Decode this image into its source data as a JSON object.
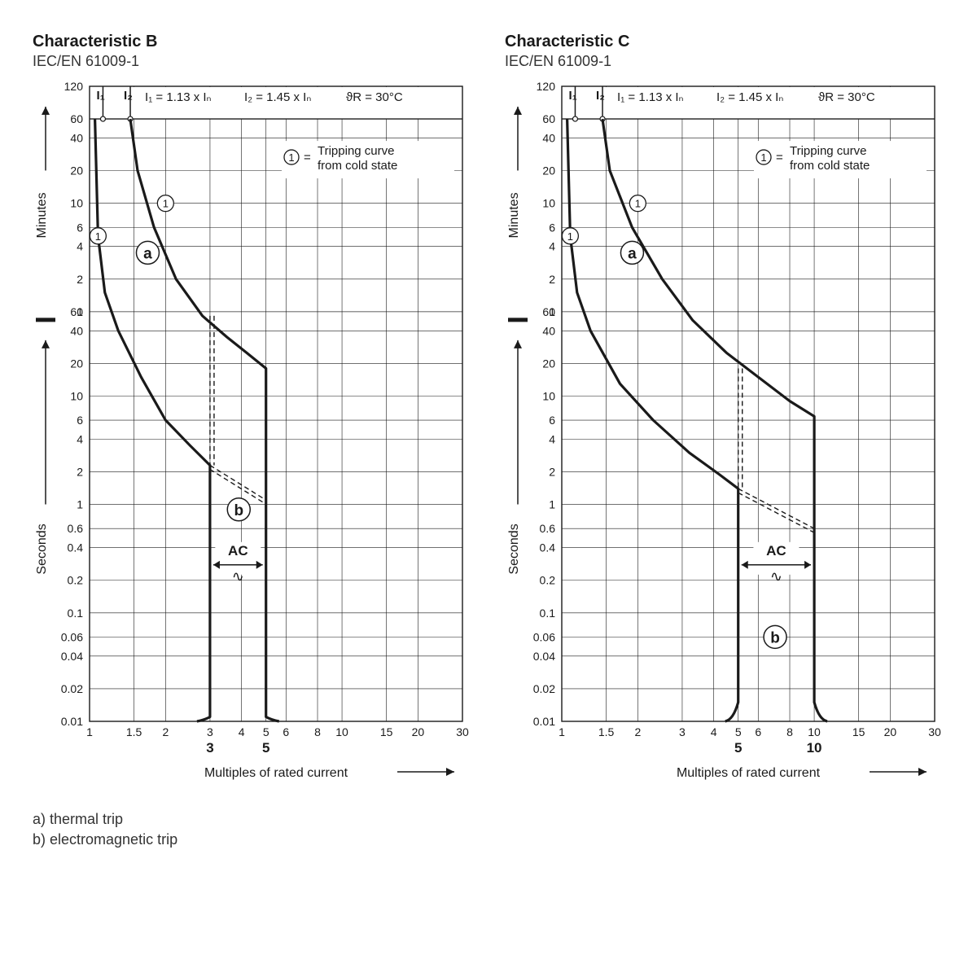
{
  "footer": {
    "a": "a)  thermal trip",
    "b": "b)  electromagnetic trip"
  },
  "common": {
    "x_axis_label": "Multiples of rated current",
    "y_axis_minutes": "Minutes",
    "y_axis_seconds": "Seconds",
    "header_I1": "I₁ = 1.13 x Iₙ",
    "header_I2": "I₂ = 1.45 x Iₙ",
    "header_temp": "ϑR = 30°C",
    "legend_circle_text": "Tripping curve from cold state",
    "legend_circle_num": "1",
    "label_a": "a",
    "label_b": "b",
    "label_AC": "AC",
    "colors": {
      "line": "#1a1a1a",
      "grid": "#1a1a1a",
      "bg": "#ffffff",
      "text": "#1a1a1a"
    },
    "line_widths": {
      "curve": 3.2,
      "grid": 0.6,
      "frame": 1.4
    },
    "font_sizes": {
      "title": 20,
      "subtitle": 18,
      "tick": 14,
      "annot": 15,
      "axis_label": 16
    },
    "x_ticks": [
      1,
      1.5,
      2,
      3,
      4,
      5,
      6,
      8,
      10,
      15,
      20,
      30
    ],
    "x_range": [
      1,
      30
    ],
    "y_sec_ticks": [
      0.01,
      0.02,
      0.04,
      0.06,
      0.1,
      0.2,
      0.4,
      0.6,
      1,
      2,
      4,
      6,
      10,
      20,
      40,
      60
    ],
    "y_min_ticks": [
      1,
      2,
      4,
      6,
      10,
      20,
      40,
      60,
      120
    ],
    "y_sec_range": [
      0.01,
      60
    ],
    "y_min_range": [
      1,
      120
    ]
  },
  "charts": [
    {
      "title": "Characteristic B",
      "subtitle": "IEC/EN 61009-1",
      "mag_low": 3,
      "mag_high": 5,
      "x_bold_labels": [
        "3",
        "5"
      ],
      "curve_lower": [
        {
          "x": 1.05,
          "sec": null,
          "min": 60
        },
        {
          "x": 1.08,
          "sec": null,
          "min": 5
        },
        {
          "x": 1.15,
          "sec": null,
          "min": 1.5
        },
        {
          "x": 1.3,
          "sec": 40,
          "min": null
        },
        {
          "x": 1.6,
          "sec": 15,
          "min": null
        },
        {
          "x": 2.0,
          "sec": 6,
          "min": null
        },
        {
          "x": 2.5,
          "sec": 3.5,
          "min": null
        },
        {
          "x": 3.0,
          "sec": 2.3,
          "min": null
        }
      ],
      "curve_upper": [
        {
          "x": 1.45,
          "sec": null,
          "min": 60
        },
        {
          "x": 1.55,
          "sec": null,
          "min": 20
        },
        {
          "x": 1.8,
          "sec": null,
          "min": 6
        },
        {
          "x": 2.2,
          "sec": null,
          "min": 2
        },
        {
          "x": 2.8,
          "sec": 55,
          "min": null
        },
        {
          "x": 3.5,
          "sec": 35,
          "min": null
        },
        {
          "x": 4.2,
          "sec": 25,
          "min": null
        },
        {
          "x": 5.0,
          "sec": 18,
          "min": null
        }
      ],
      "dash_lower": [
        {
          "x": 3.0,
          "sec": 2.3
        },
        {
          "x": 5.0,
          "sec": 1.1
        }
      ],
      "dash_upper": [
        {
          "x": 3.0,
          "sec": 55
        },
        {
          "x": 3.0,
          "sec": 45
        }
      ],
      "mag_floor_sec": 0.011,
      "label_a_pos": {
        "x": 1.7,
        "min": 3.5
      },
      "label_b_pos": {
        "x": 3.9,
        "sec": 0.9
      },
      "label_AC_pos": {
        "x": 3.9,
        "sec": 0.33
      },
      "marker1_upper": {
        "x": 2,
        "min": 10
      },
      "marker1_lower": {
        "x": 1.08,
        "min": 5
      }
    },
    {
      "title": "Characteristic C",
      "subtitle": "IEC/EN 61009-1",
      "mag_low": 5,
      "mag_high": 10,
      "x_bold_labels": [
        "5",
        "10"
      ],
      "curve_lower": [
        {
          "x": 1.05,
          "sec": null,
          "min": 60
        },
        {
          "x": 1.08,
          "sec": null,
          "min": 5
        },
        {
          "x": 1.15,
          "sec": null,
          "min": 1.5
        },
        {
          "x": 1.3,
          "sec": 40,
          "min": null
        },
        {
          "x": 1.7,
          "sec": 13,
          "min": null
        },
        {
          "x": 2.3,
          "sec": 6,
          "min": null
        },
        {
          "x": 3.2,
          "sec": 3,
          "min": null
        },
        {
          "x": 4.2,
          "sec": 1.9,
          "min": null
        },
        {
          "x": 5.0,
          "sec": 1.4,
          "min": null
        }
      ],
      "curve_upper": [
        {
          "x": 1.45,
          "sec": null,
          "min": 60
        },
        {
          "x": 1.55,
          "sec": null,
          "min": 20
        },
        {
          "x": 1.9,
          "sec": null,
          "min": 6
        },
        {
          "x": 2.5,
          "sec": null,
          "min": 2
        },
        {
          "x": 3.3,
          "sec": 50,
          "min": null
        },
        {
          "x": 4.5,
          "sec": 25,
          "min": null
        },
        {
          "x": 6.0,
          "sec": 15,
          "min": null
        },
        {
          "x": 8.0,
          "sec": 9,
          "min": null
        },
        {
          "x": 10.0,
          "sec": 6.5,
          "min": null
        }
      ],
      "dash_lower": [
        {
          "x": 5.0,
          "sec": 1.4
        },
        {
          "x": 10.0,
          "sec": 0.6
        }
      ],
      "mag_floor_sec": 0.015,
      "label_a_pos": {
        "x": 1.9,
        "min": 3.5
      },
      "label_b_pos": {
        "x": 7.0,
        "sec": 0.06
      },
      "label_AC_pos": {
        "x": 7.0,
        "sec": 0.33
      },
      "marker1_upper": {
        "x": 2,
        "min": 10
      },
      "marker1_lower": {
        "x": 1.08,
        "min": 5
      }
    }
  ]
}
